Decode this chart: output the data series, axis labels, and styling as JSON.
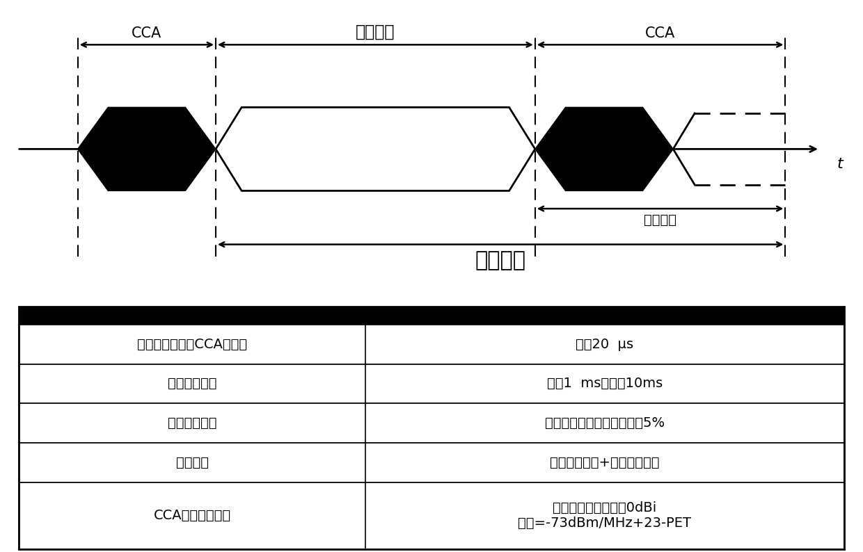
{
  "bg_color": "#ffffff",
  "diagram": {
    "title_cca1": "CCA",
    "title_occ": "信道占用",
    "title_cca2": "CCA",
    "title_idle": "信道空闲",
    "title_frame": "固定框架",
    "time_label": "t"
  },
  "table": {
    "header_bg": "#000000",
    "rows": [
      [
        "空闲信道评估（CCA）时间",
        "最小20  μs"
      ],
      [
        "信道占用时间",
        "最小1  ms，最大10ms"
      ],
      [
        "信道空闲时间",
        "大于或等于信道占用时间的5%"
      ],
      [
        "固定框架",
        "信道占用时间+信道空闲时间"
      ],
      [
        "CCA能量检测阈值",
        "假设接收天线增益为0dBi\n阈值=-73dBm/MHz+23-PET"
      ]
    ],
    "col_split": 0.42
  }
}
